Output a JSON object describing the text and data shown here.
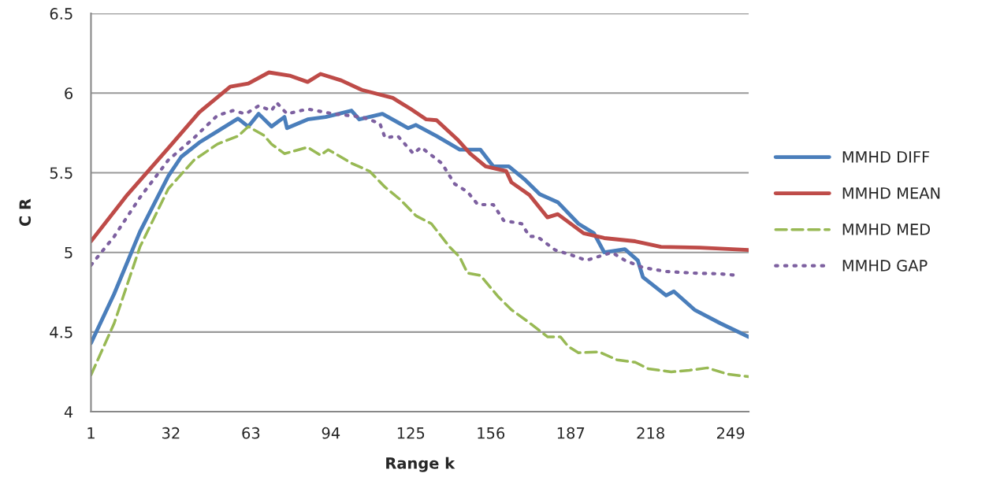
{
  "chart_data": {
    "type": "line",
    "xlabel": "Range k",
    "ylabel": "C R",
    "xlim": [
      1,
      256
    ],
    "xticks": [
      1,
      32,
      63,
      94,
      125,
      156,
      187,
      218,
      249
    ],
    "ylim": [
      4,
      6.5
    ],
    "yticks": [
      4,
      4.5,
      5,
      5.5,
      6,
      6.5
    ],
    "grid": "y",
    "legend": "right",
    "marker": "none",
    "series": [
      {
        "name": "MMHD DIFF",
        "color": "#4a7ebb",
        "line_style": "solid",
        "x": [
          1,
          10,
          20,
          31,
          36,
          43,
          50,
          58,
          62,
          66,
          71,
          76,
          77,
          85,
          92,
          102,
          105,
          114,
          124,
          127,
          135,
          144,
          152,
          157,
          163,
          169,
          175,
          182,
          190,
          196,
          200,
          208,
          213,
          215,
          224,
          227,
          235,
          245,
          256
        ],
        "values": [
          4.43,
          4.74,
          5.13,
          5.48,
          5.6,
          5.69,
          5.76,
          5.84,
          5.79,
          5.87,
          5.79,
          5.85,
          5.78,
          5.835,
          5.85,
          5.89,
          5.835,
          5.87,
          5.78,
          5.8,
          5.73,
          5.645,
          5.645,
          5.54,
          5.54,
          5.46,
          5.365,
          5.315,
          5.18,
          5.12,
          5.0,
          5.02,
          4.95,
          4.845,
          4.73,
          4.755,
          4.64,
          4.555,
          4.47
        ]
      },
      {
        "name": "MMHD MEAN",
        "color": "#be4b48",
        "line_style": "solid",
        "x": [
          1,
          15,
          31,
          43,
          49,
          55,
          62,
          70,
          78,
          85,
          90,
          98,
          106,
          118,
          125,
          131,
          135,
          143,
          148,
          154,
          162,
          164,
          171,
          178,
          182,
          192,
          200,
          212,
          222,
          237,
          256
        ],
        "values": [
          5.07,
          5.36,
          5.655,
          5.88,
          5.96,
          6.04,
          6.06,
          6.13,
          6.11,
          6.07,
          6.12,
          6.08,
          6.02,
          5.97,
          5.9,
          5.835,
          5.83,
          5.71,
          5.62,
          5.54,
          5.51,
          5.44,
          5.36,
          5.22,
          5.24,
          5.12,
          5.09,
          5.07,
          5.035,
          5.03,
          5.015
        ]
      },
      {
        "name": "MMHD MED",
        "color": "#98b954",
        "line_style": "dashed",
        "x": [
          1,
          10,
          20,
          31,
          41,
          50,
          58,
          62,
          68,
          71,
          76,
          85,
          90,
          93,
          102,
          109,
          115,
          121,
          127,
          133,
          140,
          144,
          147,
          152,
          159,
          164,
          170,
          178,
          183,
          186,
          190,
          198,
          205,
          212,
          217,
          226,
          233,
          240,
          248,
          256
        ],
        "values": [
          4.23,
          4.555,
          5.035,
          5.4,
          5.58,
          5.68,
          5.73,
          5.79,
          5.735,
          5.68,
          5.62,
          5.66,
          5.61,
          5.645,
          5.56,
          5.51,
          5.41,
          5.33,
          5.23,
          5.18,
          5.035,
          4.97,
          4.87,
          4.855,
          4.72,
          4.64,
          4.57,
          4.47,
          4.47,
          4.41,
          4.37,
          4.375,
          4.325,
          4.31,
          4.27,
          4.25,
          4.26,
          4.275,
          4.235,
          4.22
        ]
      },
      {
        "name": "MMHD GAP",
        "color": "#7d60a0",
        "line_style": "dotted",
        "x": [
          1,
          10,
          20,
          31,
          41,
          50,
          56,
          61,
          66,
          71,
          73,
          77,
          85,
          95,
          106,
          113,
          115,
          120,
          126,
          129,
          137,
          142,
          147,
          151,
          157,
          161,
          168,
          171,
          174,
          181,
          187,
          193,
          200,
          203,
          208,
          215,
          224,
          235,
          245,
          252
        ],
        "values": [
          4.92,
          5.1,
          5.345,
          5.58,
          5.72,
          5.86,
          5.89,
          5.87,
          5.92,
          5.89,
          5.94,
          5.87,
          5.9,
          5.87,
          5.85,
          5.81,
          5.72,
          5.73,
          5.62,
          5.66,
          5.56,
          5.43,
          5.38,
          5.3,
          5.3,
          5.2,
          5.18,
          5.1,
          5.1,
          5.015,
          4.985,
          4.95,
          4.985,
          5.0,
          4.95,
          4.905,
          4.88,
          4.87,
          4.865,
          4.855
        ]
      }
    ]
  }
}
